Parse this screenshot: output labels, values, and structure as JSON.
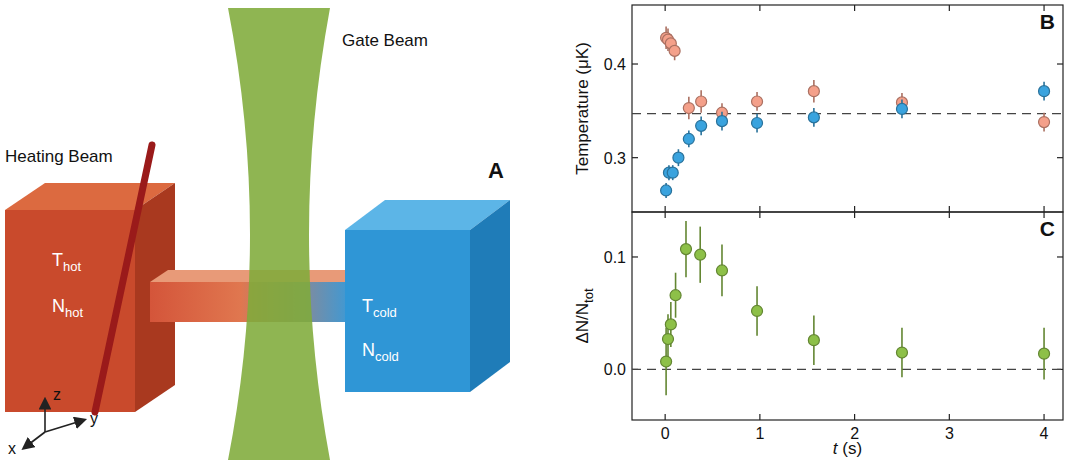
{
  "diagram": {
    "panel": "A",
    "heating_beam": "Heating Beam",
    "gate_beam": "Gate Beam",
    "hot": {
      "temperature": {
        "main": "T",
        "sub": "hot"
      },
      "number": {
        "main": "N",
        "sub": "hot"
      }
    },
    "cold": {
      "temperature": {
        "main": "T",
        "sub": "cold"
      },
      "number": {
        "main": "N",
        "sub": "cold"
      }
    },
    "axes": {
      "x": "x",
      "y": "y",
      "z": "z"
    }
  },
  "chart_data": [
    {
      "panel": "B",
      "type": "scatter",
      "ylabel": "Temperature (μK)",
      "xlim": [
        -0.35,
        4.2
      ],
      "xticks": [
        0,
        1,
        2,
        3,
        4
      ],
      "ylim": [
        0.242,
        0.463
      ],
      "yticks": [
        0.3,
        0.4
      ],
      "tick_labels": "y",
      "hline": 0.347,
      "marker": "circle",
      "series": [
        {
          "color": "#f4a08a",
          "x": [
            0.01,
            0.03,
            0.06,
            0.1,
            0.25,
            0.38,
            0.6,
            0.97,
            1.57,
            2.5,
            4.0
          ],
          "values": [
            0.428,
            0.426,
            0.422,
            0.414,
            0.353,
            0.36,
            0.348,
            0.36,
            0.371,
            0.359,
            0.338
          ],
          "errors": [
            0.012,
            0.012,
            0.01,
            0.01,
            0.012,
            0.012,
            0.01,
            0.01,
            0.012,
            0.01,
            0.01
          ]
        },
        {
          "color": "#3aa3de",
          "x": [
            0.01,
            0.04,
            0.08,
            0.14,
            0.25,
            0.38,
            0.6,
            0.97,
            1.57,
            2.5,
            4.0
          ],
          "values": [
            0.265,
            0.284,
            0.284,
            0.3,
            0.32,
            0.334,
            0.339,
            0.337,
            0.343,
            0.352,
            0.371
          ],
          "errors": [
            0.008,
            0.008,
            0.008,
            0.009,
            0.009,
            0.01,
            0.01,
            0.01,
            0.01,
            0.01,
            0.01
          ]
        }
      ]
    },
    {
      "panel": "C",
      "type": "scatter",
      "xlabel": "t (s)",
      "ylabel": "ΔN/N",
      "ylabel_sub": "tot",
      "xlim": [
        -0.35,
        4.2
      ],
      "xticks": [
        0,
        1,
        2,
        3,
        4
      ],
      "ylim": [
        -0.045,
        0.14
      ],
      "yticks": [
        {
          "value": 0,
          "label": "0.0"
        },
        0.1
      ],
      "hline": 0,
      "marker": "circle",
      "series": [
        {
          "color": "#8dc048",
          "x": [
            0.01,
            0.03,
            0.06,
            0.11,
            0.22,
            0.37,
            0.6,
            0.97,
            1.57,
            2.5,
            4.0
          ],
          "values": [
            0.007,
            0.027,
            0.04,
            0.066,
            0.107,
            0.102,
            0.088,
            0.052,
            0.026,
            0.015,
            0.014
          ],
          "errors": [
            0.03,
            0.022,
            0.02,
            0.02,
            0.025,
            0.025,
            0.023,
            0.022,
            0.022,
            0.022,
            0.023
          ]
        }
      ]
    }
  ]
}
